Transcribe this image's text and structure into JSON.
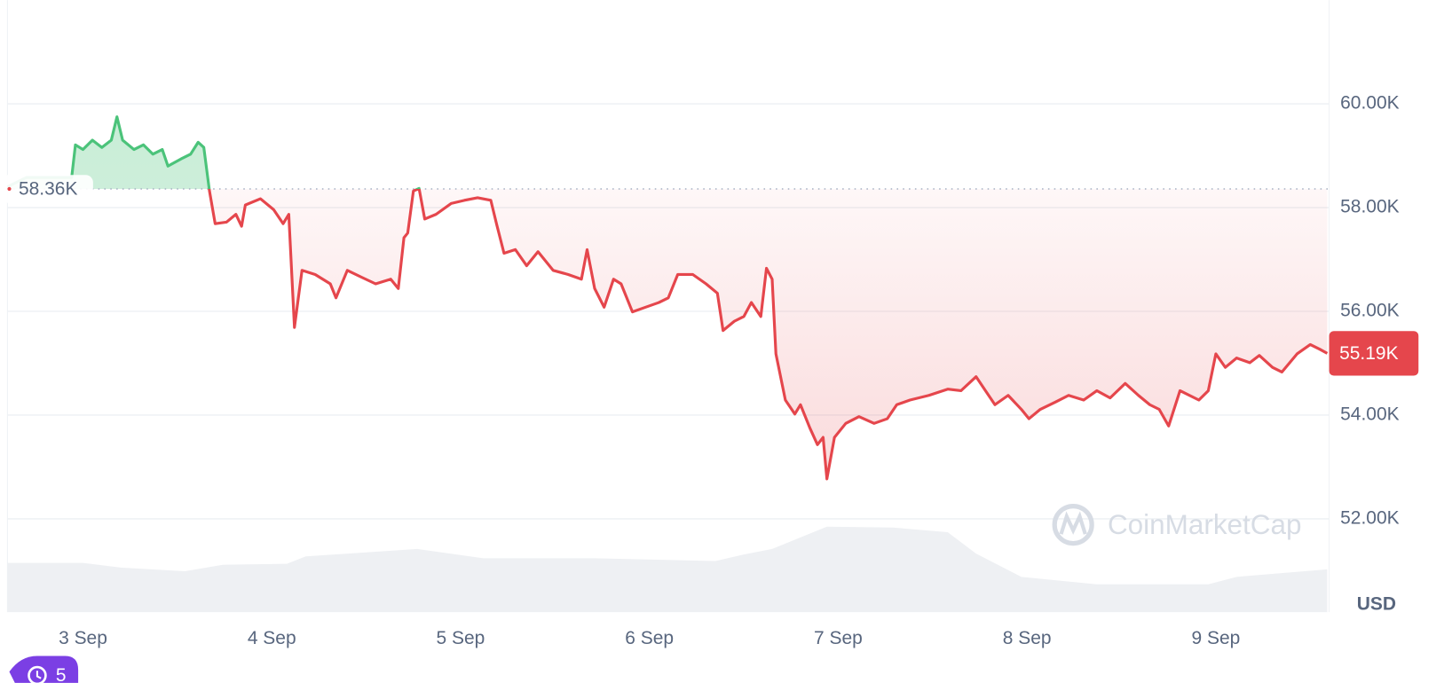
{
  "chart_data": {
    "type": "line",
    "xlim": [
      2.6,
      9.6
    ],
    "xticks": [
      {
        "value": 3,
        "label": "3 Sep"
      },
      {
        "value": 4,
        "label": "4 Sep"
      },
      {
        "value": 5,
        "label": "5 Sep"
      },
      {
        "value": 6,
        "label": "6 Sep"
      },
      {
        "value": 7,
        "label": "7 Sep"
      },
      {
        "value": 8,
        "label": "8 Sep"
      },
      {
        "value": 9,
        "label": "9 Sep"
      }
    ],
    "ylim": [
      50200,
      62000
    ],
    "yticks": [
      {
        "value": 52000,
        "label": "52.00K"
      },
      {
        "value": 54000,
        "label": "54.00K"
      },
      {
        "value": 56000,
        "label": "56.00K"
      },
      {
        "value": 58000,
        "label": "58.00K"
      },
      {
        "value": 60000,
        "label": "60.00K"
      }
    ],
    "y_unit": "USD",
    "grid": true,
    "baseline": {
      "value": 58360,
      "label": "58.36K"
    },
    "last_price": {
      "value": 55190,
      "label": "55.19K"
    },
    "up_color": "#4bc37a",
    "down_color": "#e5464c",
    "series": [
      {
        "x": [
          2.6,
          2.7,
          2.94,
          2.96,
          3.0,
          3.05,
          3.1,
          3.15,
          3.18,
          3.21,
          3.27,
          3.32,
          3.37,
          3.42,
          3.45,
          3.52,
          3.57,
          3.61,
          3.64,
          3.67,
          3.7,
          3.76,
          3.81,
          3.84,
          3.86,
          3.94,
          4.01,
          4.06,
          4.09,
          4.12,
          4.16,
          4.23,
          4.31,
          4.34,
          4.4,
          4.48,
          4.55,
          4.63,
          4.67,
          4.7,
          4.72,
          4.75,
          4.78,
          4.81,
          4.87,
          4.95,
          5.02,
          5.09,
          5.16,
          5.19,
          5.23,
          5.29,
          5.35,
          5.41,
          5.49,
          5.57,
          5.64,
          5.67,
          5.71,
          5.76,
          5.81,
          5.85,
          5.91,
          5.98,
          6.05,
          6.1,
          6.15,
          6.23,
          6.3,
          6.36,
          6.39,
          6.45,
          6.5,
          6.54,
          6.59,
          6.62,
          6.65,
          6.67,
          6.72,
          6.77,
          6.8,
          6.85,
          6.89,
          6.92,
          6.94,
          6.98,
          7.04,
          7.11,
          7.19,
          7.26,
          7.31,
          7.38,
          7.48,
          7.58,
          7.65,
          7.73,
          7.78,
          7.83,
          7.9,
          7.97,
          8.01,
          8.07,
          8.15,
          8.22,
          8.3,
          8.37,
          8.44,
          8.52,
          8.59,
          8.65,
          8.7,
          8.75,
          8.81,
          8.91,
          8.96,
          9.0,
          9.05,
          9.11,
          9.18,
          9.23,
          9.3,
          9.35,
          9.43,
          9.5,
          9.55,
          9.59
        ],
        "values": [
          58400,
          58580,
          58580,
          59210,
          59120,
          59300,
          59160,
          59300,
          59750,
          59300,
          59120,
          59210,
          59030,
          59120,
          58800,
          58940,
          59030,
          59260,
          59160,
          58320,
          57690,
          57720,
          57870,
          57640,
          58050,
          58170,
          57960,
          57690,
          57870,
          55690,
          56790,
          56710,
          56530,
          56260,
          56790,
          56650,
          56530,
          56620,
          56440,
          57420,
          57510,
          58320,
          58370,
          57780,
          57870,
          58080,
          58140,
          58190,
          58140,
          57690,
          57120,
          57190,
          56880,
          57150,
          56790,
          56710,
          56620,
          57190,
          56440,
          56080,
          56620,
          56530,
          55990,
          56080,
          56170,
          56260,
          56710,
          56710,
          56530,
          56350,
          55630,
          55810,
          55900,
          56170,
          55900,
          56830,
          56620,
          55180,
          54290,
          54020,
          54200,
          53750,
          53430,
          53570,
          52770,
          53570,
          53840,
          53970,
          53840,
          53930,
          54200,
          54290,
          54380,
          54500,
          54470,
          54740,
          54470,
          54200,
          54380,
          54110,
          53930,
          54110,
          54250,
          54380,
          54290,
          54470,
          54330,
          54610,
          54380,
          54200,
          54110,
          53790,
          54470,
          54290,
          54470,
          55180,
          54920,
          55100,
          55010,
          55150,
          54920,
          54830,
          55180,
          55360,
          55270,
          55190
        ]
      }
    ],
    "volume": {
      "color": "#eef0f3",
      "x": [
        2.6,
        3.0,
        3.2,
        3.54,
        3.74,
        4.08,
        4.18,
        4.77,
        5.12,
        5.71,
        6.35,
        6.5,
        6.65,
        6.94,
        7.29,
        7.58,
        7.73,
        7.97,
        8.37,
        8.96,
        9.11,
        9.59
      ],
      "values": [
        53,
        53,
        48,
        44,
        51,
        52,
        60,
        68,
        58,
        58,
        55,
        62,
        68,
        92,
        91,
        86,
        63,
        38,
        30,
        30,
        38,
        46
      ]
    }
  },
  "watermark": "CoinMarketCap",
  "history_count": 5
}
